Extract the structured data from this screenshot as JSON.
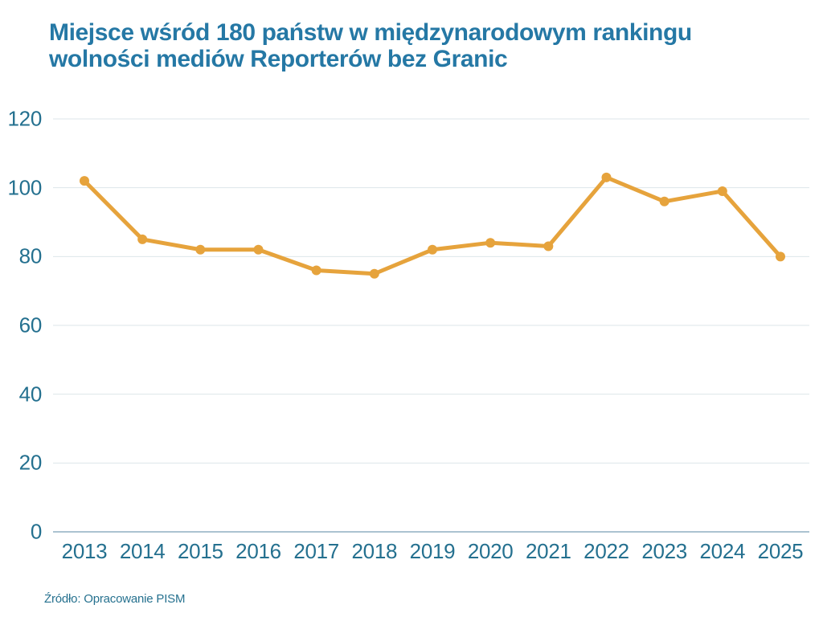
{
  "title": {
    "line1": "Miejsce wśród 180 państw w międzynarodowym rankingu",
    "line2": "wolności mediów Reporterów bez Granic"
  },
  "source": "Źródło: Opracowanie PISM",
  "colors": {
    "title_text": "#2578a5",
    "axis_label_text": "#24708f",
    "line": "#e6a33c",
    "marker": "#e6a33c",
    "gridline": "#dde6ea",
    "axis_line": "#8fafc2"
  },
  "chart_data": {
    "type": "line",
    "title": "Miejsce wśród 180 państw w międzynarodowym rankingu wolności mediów Reporterów bez Granic",
    "categories": [
      "2013",
      "2014",
      "2015",
      "2016",
      "2017",
      "2018",
      "2019",
      "2020",
      "2021",
      "2022",
      "2023",
      "2024",
      "2025"
    ],
    "values": [
      102,
      85,
      82,
      82,
      76,
      75,
      82,
      84,
      83,
      103,
      96,
      99,
      80
    ],
    "y_ticks": [
      0,
      20,
      40,
      60,
      80,
      100,
      120
    ],
    "ylim": [
      0,
      120
    ],
    "xlabel": "",
    "ylabel": "",
    "grid": true,
    "legend_position": "none",
    "source": "Źródło: Opracowanie PISM"
  }
}
